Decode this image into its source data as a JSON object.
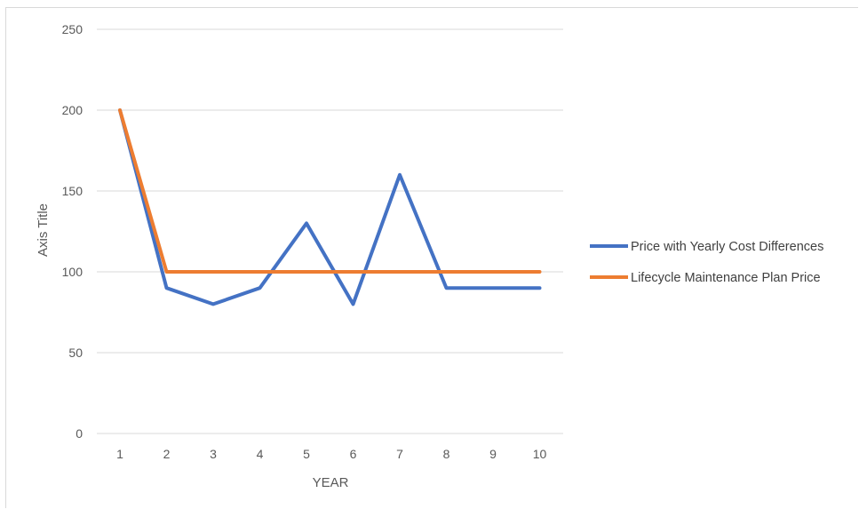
{
  "chart_data": {
    "type": "line",
    "title": "",
    "xlabel": "YEAR",
    "ylabel": "Axis Title",
    "categories": [
      "1",
      "2",
      "3",
      "4",
      "5",
      "6",
      "7",
      "8",
      "9",
      "10"
    ],
    "ylim": [
      0,
      250
    ],
    "yticks": [
      0,
      50,
      100,
      150,
      200,
      250
    ],
    "grid": "horizontal",
    "legend": "right",
    "series": [
      {
        "name": "Price with Yearly Cost Differences",
        "color": "#4472c4",
        "values": [
          200,
          90,
          80,
          90,
          130,
          80,
          160,
          90,
          90,
          90
        ]
      },
      {
        "name": "Lifecycle Maintenance Plan Price",
        "color": "#ed7d31",
        "values": [
          200,
          100,
          100,
          100,
          100,
          100,
          100,
          100,
          100,
          100
        ]
      }
    ]
  }
}
